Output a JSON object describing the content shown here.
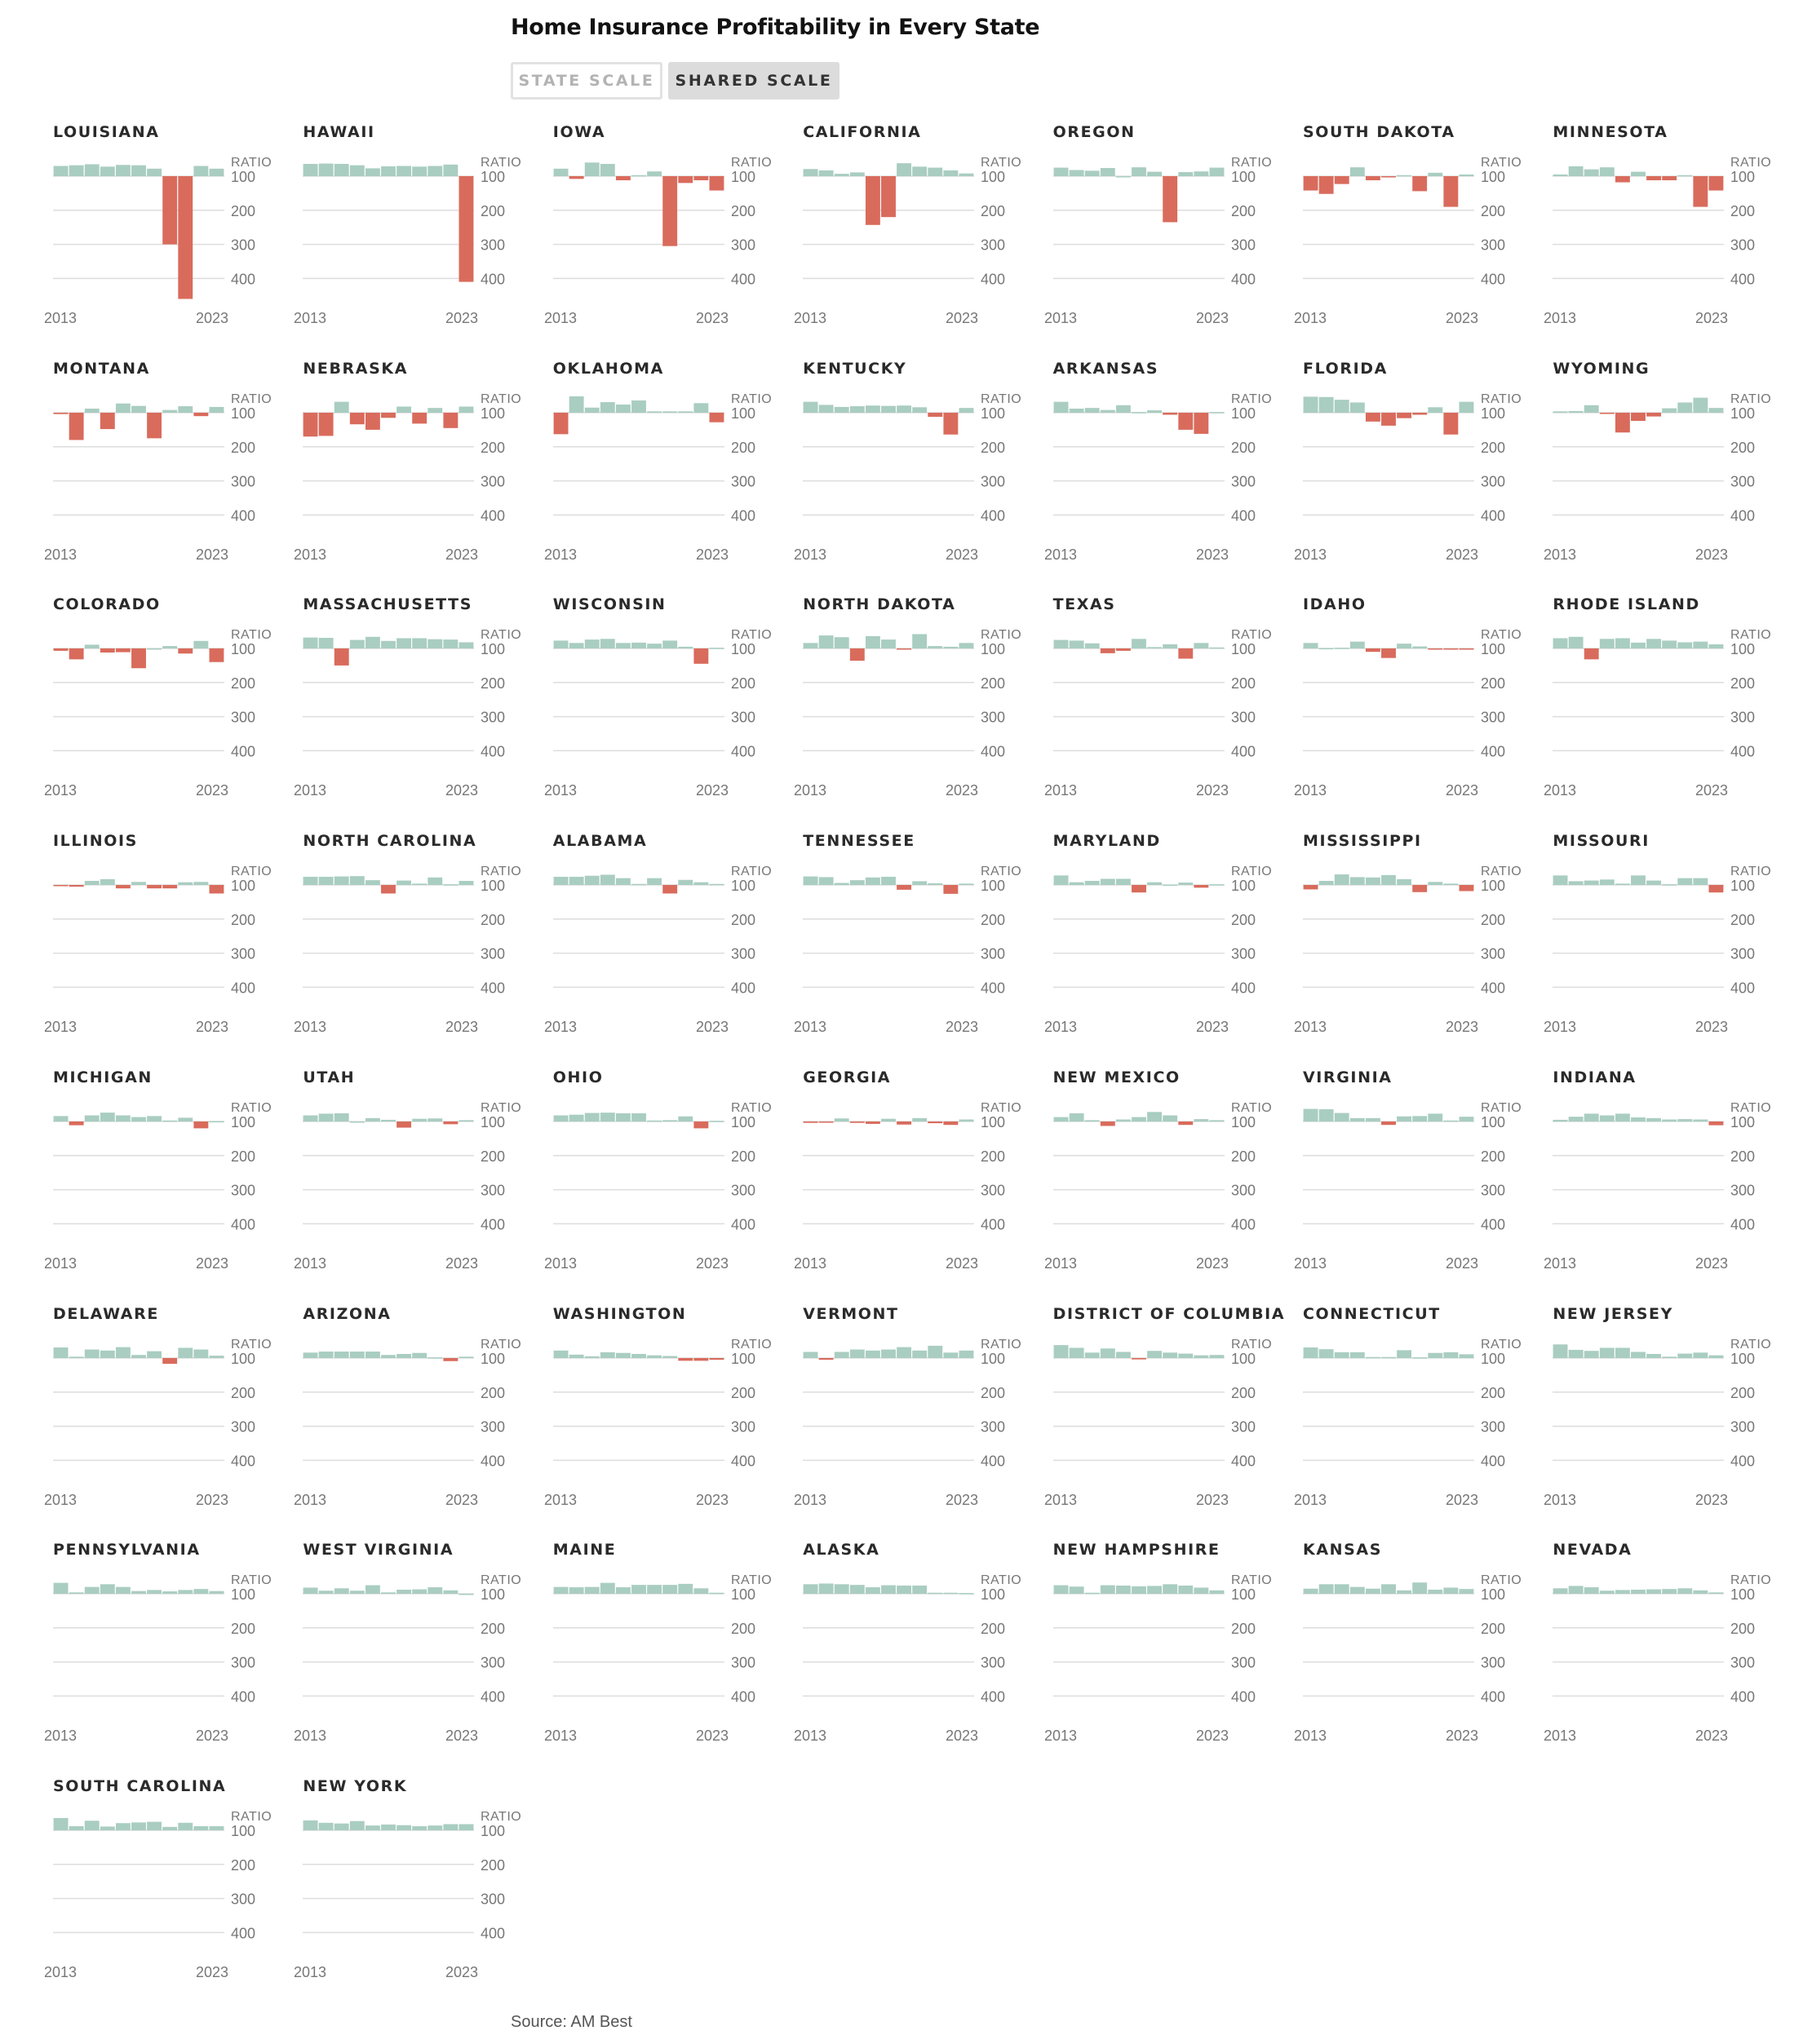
{
  "title": "Home Insurance Profitability in Every State",
  "toggle": {
    "state_label": "STATE SCALE",
    "shared_label": "SHARED SCALE",
    "selected": "SHARED SCALE"
  },
  "source": "Source: AM Best",
  "colors": {
    "profit": "#a9cdc1",
    "loss": "#d96b5c",
    "grid": "#dddddd",
    "axis_text": "#777777"
  },
  "chart_data": {
    "type": "bar",
    "layout": "small-multiples",
    "shared_scale": true,
    "y_axis_label": "RATIO",
    "y_ticks": [
      100,
      200,
      300,
      400
    ],
    "ylim": [
      50,
      440
    ],
    "baseline": 100,
    "x_tick_labels": [
      "2013",
      "2023"
    ],
    "years": [
      2013,
      2014,
      2015,
      2016,
      2017,
      2018,
      2019,
      2020,
      2021,
      2022,
      2023
    ],
    "states": [
      {
        "name": "LOUISIANA",
        "values": [
          70,
          68,
          65,
          72,
          67,
          68,
          78,
          300,
          460,
          70,
          78
        ]
      },
      {
        "name": "HAWAII",
        "values": [
          64,
          63,
          64,
          68,
          77,
          71,
          70,
          72,
          70,
          66,
          410
        ]
      },
      {
        "name": "IOWA",
        "values": [
          78,
          108,
          60,
          64,
          112,
          97,
          86,
          305,
          120,
          112,
          142
        ]
      },
      {
        "name": "CALIFORNIA",
        "values": [
          79,
          83,
          93,
          89,
          243,
          220,
          62,
          72,
          75,
          83,
          92
        ]
      },
      {
        "name": "OREGON",
        "values": [
          75,
          82,
          84,
          76,
          100,
          74,
          87,
          235,
          88,
          86,
          75
        ]
      },
      {
        "name": "SOUTH DAKOTA",
        "values": [
          142,
          152,
          123,
          74,
          112,
          103,
          97,
          144,
          90,
          190,
          95
        ]
      },
      {
        "name": "MINNESOTA",
        "values": [
          95,
          71,
          80,
          74,
          118,
          87,
          112,
          112,
          97,
          190,
          142
        ]
      },
      {
        "name": "MONTANA",
        "values": [
          104,
          180,
          88,
          148,
          73,
          80,
          175,
          92,
          81,
          110,
          83
        ]
      },
      {
        "name": "NEBRASKA",
        "values": [
          170,
          168,
          68,
          134,
          150,
          115,
          82,
          132,
          86,
          145,
          82
        ]
      },
      {
        "name": "OKLAHOMA",
        "values": [
          163,
          52,
          85,
          69,
          76,
          64,
          96,
          96,
          96,
          72,
          128
        ]
      },
      {
        "name": "KENTUCKY",
        "values": [
          68,
          77,
          83,
          81,
          79,
          80,
          79,
          84,
          112,
          164,
          86
        ]
      },
      {
        "name": "ARKANSAS",
        "values": [
          68,
          88,
          86,
          92,
          78,
          98,
          93,
          106,
          150,
          162,
          98
        ]
      },
      {
        "name": "FLORIDA",
        "values": [
          53,
          54,
          62,
          70,
          126,
          138,
          116,
          106,
          84,
          164,
          68
        ]
      },
      {
        "name": "WYOMING",
        "values": [
          96,
          95,
          78,
          102,
          158,
          124,
          111,
          87,
          70,
          56,
          86
        ]
      },
      {
        "name": "COLORADO",
        "values": [
          107,
          132,
          89,
          112,
          111,
          158,
          100,
          93,
          115,
          78,
          140
        ]
      },
      {
        "name": "MASSACHUSETTS",
        "values": [
          68,
          69,
          150,
          75,
          66,
          78,
          70,
          70,
          73,
          74,
          82
        ]
      },
      {
        "name": "WISCONSIN",
        "values": [
          77,
          84,
          74,
          72,
          84,
          83,
          86,
          77,
          95,
          145,
          98
        ]
      },
      {
        "name": "NORTH DAKOTA",
        "values": [
          84,
          62,
          67,
          136,
          64,
          74,
          102,
          58,
          93,
          95,
          84
        ]
      },
      {
        "name": "TEXAS",
        "values": [
          75,
          77,
          85,
          114,
          107,
          72,
          96,
          88,
          130,
          84,
          97
        ]
      },
      {
        "name": "IDAHO",
        "values": [
          84,
          99,
          98,
          80,
          110,
          128,
          86,
          94,
          103,
          102,
          103
        ]
      },
      {
        "name": "RHODE ISLAND",
        "values": [
          70,
          66,
          132,
          72,
          70,
          83,
          72,
          77,
          82,
          80,
          88
        ]
      },
      {
        "name": "ILLINOIS",
        "values": [
          103,
          105,
          88,
          83,
          110,
          91,
          110,
          110,
          92,
          91,
          125
        ]
      },
      {
        "name": "NORTH CAROLINA",
        "values": [
          76,
          76,
          75,
          74,
          86,
          125,
          87,
          96,
          78,
          98,
          88
        ]
      },
      {
        "name": "ALABAMA",
        "values": [
          76,
          76,
          73,
          70,
          80,
          97,
          80,
          125,
          85,
          92,
          97
        ]
      },
      {
        "name": "TENNESSEE",
        "values": [
          75,
          77,
          94,
          86,
          78,
          76,
          114,
          89,
          95,
          126,
          96
        ]
      },
      {
        "name": "MARYLAND",
        "values": [
          72,
          92,
          88,
          82,
          82,
          122,
          92,
          99,
          93,
          108,
          98
        ]
      },
      {
        "name": "MISSISSIPPI",
        "values": [
          113,
          88,
          69,
          77,
          78,
          71,
          83,
          121,
          91,
          96,
          118
        ]
      },
      {
        "name": "MISSOURI",
        "values": [
          72,
          89,
          87,
          84,
          96,
          72,
          87,
          98,
          80,
          80,
          122
        ]
      },
      {
        "name": "MICHIGAN",
        "values": [
          84,
          111,
          82,
          74,
          82,
          87,
          84,
          97,
          89,
          120,
          99
        ]
      },
      {
        "name": "UTAH",
        "values": [
          82,
          77,
          76,
          100,
          90,
          95,
          118,
          92,
          91,
          108,
          96
        ]
      },
      {
        "name": "OHIO",
        "values": [
          82,
          80,
          75,
          74,
          76,
          76,
          97,
          96,
          85,
          120,
          98
        ]
      },
      {
        "name": "GEORGIA",
        "values": [
          104,
          101,
          91,
          104,
          107,
          92,
          109,
          90,
          105,
          110,
          94
        ]
      },
      {
        "name": "NEW MEXICO",
        "values": [
          87,
          76,
          96,
          113,
          94,
          87,
          72,
          82,
          110,
          93,
          96
        ]
      },
      {
        "name": "VIRGINIA",
        "values": [
          63,
          64,
          75,
          90,
          90,
          110,
          85,
          84,
          77,
          97,
          86
        ]
      },
      {
        "name": "INDIANA",
        "values": [
          95,
          86,
          77,
          82,
          77,
          88,
          90,
          94,
          93,
          94,
          111
        ]
      },
      {
        "name": "DELAWARE",
        "values": [
          69,
          96,
          75,
          78,
          68,
          91,
          80,
          117,
          70,
          75,
          93
        ]
      },
      {
        "name": "ARIZONA",
        "values": [
          84,
          81,
          81,
          81,
          81,
          91,
          88,
          85,
          98,
          109,
          96
        ]
      },
      {
        "name": "WASHINGTON",
        "values": [
          78,
          90,
          95,
          83,
          85,
          88,
          92,
          94,
          108,
          108,
          105
        ]
      },
      {
        "name": "VERMONT",
        "values": [
          82,
          105,
          82,
          75,
          78,
          75,
          68,
          78,
          64,
          84,
          78
        ]
      },
      {
        "name": "DISTRICT OF COLUMBIA",
        "values": [
          62,
          70,
          84,
          72,
          82,
          104,
          79,
          84,
          87,
          92,
          91
        ]
      },
      {
        "name": "CONNECTICUT",
        "values": [
          69,
          74,
          83,
          83,
          97,
          97,
          77,
          98,
          85,
          83,
          89
        ]
      },
      {
        "name": "NEW JERSEY",
        "values": [
          60,
          76,
          79,
          70,
          70,
          82,
          88,
          96,
          87,
          84,
          92
        ]
      },
      {
        "name": "PENNSYLVANIA",
        "values": [
          68,
          96,
          80,
          72,
          80,
          92,
          89,
          93,
          89,
          86,
          92
        ]
      },
      {
        "name": "WEST VIRGINIA",
        "values": [
          82,
          91,
          84,
          91,
          75,
          96,
          88,
          87,
          81,
          90,
          100
        ]
      },
      {
        "name": "MAINE",
        "values": [
          80,
          81,
          80,
          68,
          81,
          74,
          74,
          74,
          71,
          84,
          97
        ]
      },
      {
        "name": "ALASKA",
        "values": [
          72,
          70,
          72,
          74,
          81,
          75,
          76,
          76,
          97,
          97,
          98
        ]
      },
      {
        "name": "NEW HAMPSHIRE",
        "values": [
          75,
          79,
          97,
          75,
          76,
          78,
          77,
          72,
          76,
          82,
          90
        ]
      },
      {
        "name": "KANSAS",
        "values": [
          85,
          72,
          72,
          80,
          85,
          72,
          90,
          67,
          88,
          82,
          86
        ]
      },
      {
        "name": "NEVADA",
        "values": [
          84,
          77,
          81,
          91,
          89,
          88,
          87,
          86,
          84,
          90,
          96
        ]
      },
      {
        "name": "SOUTH CAROLINA",
        "values": [
          64,
          88,
          72,
          89,
          79,
          77,
          75,
          90,
          78,
          88,
          88
        ]
      },
      {
        "name": "NEW YORK",
        "values": [
          71,
          78,
          80,
          73,
          86,
          83,
          85,
          88,
          86,
          82,
          82
        ]
      }
    ]
  }
}
